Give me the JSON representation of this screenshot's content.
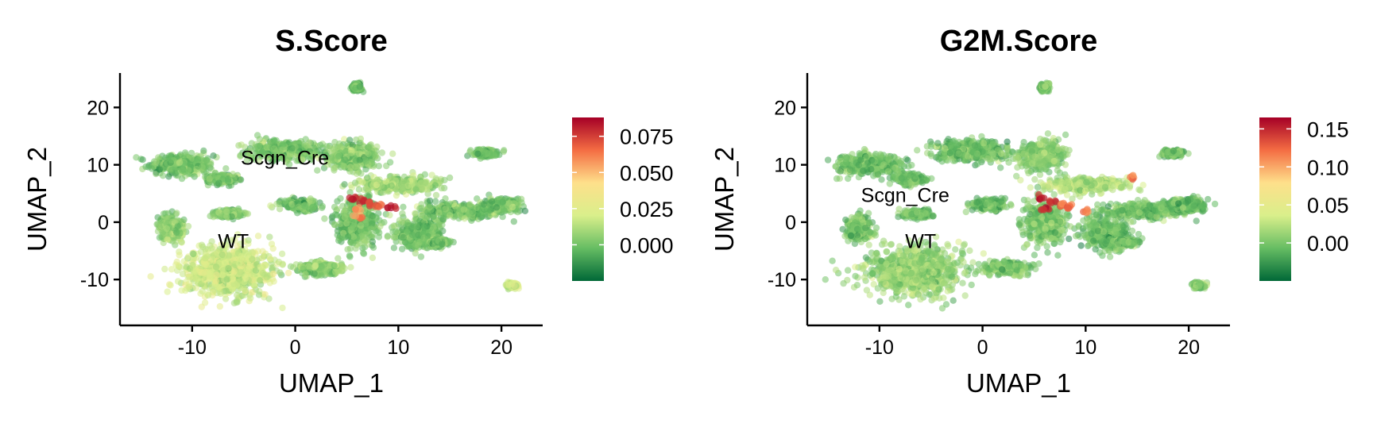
{
  "chart_data": [
    {
      "type": "scatter",
      "title": "S.Score",
      "xlabel": "UMAP_1",
      "ylabel": "UMAP_2",
      "xlim": [
        -17,
        24
      ],
      "ylim": [
        -18,
        26
      ],
      "xticks": [
        -10,
        0,
        10,
        20
      ],
      "yticks": [
        -10,
        0,
        10,
        20
      ],
      "grid": false,
      "legend": "right",
      "colorbar": {
        "min": -0.025,
        "max": 0.088,
        "ticks": [
          0.0,
          0.025,
          0.05,
          0.075
        ],
        "tick_labels": [
          "0.000",
          "0.025",
          "0.050",
          "0.075"
        ],
        "colors": [
          "#006837",
          "#66bd63",
          "#d9ef8b",
          "#fee08b",
          "#f46d43",
          "#a50026"
        ]
      },
      "annotations": [
        {
          "text": "Scgn_Cre",
          "x": -1,
          "y": 10
        },
        {
          "text": "WT",
          "x": -6,
          "y": -4.5
        }
      ],
      "clusters": [
        {
          "x": -11,
          "y": 10,
          "sx": 2.8,
          "sy": 1.6,
          "value": 0.0
        },
        {
          "x": -1,
          "y": 12.5,
          "sx": 3.2,
          "sy": 1.6,
          "value": 0.002
        },
        {
          "x": -7,
          "y": 7.5,
          "sx": 1.3,
          "sy": 0.8,
          "value": 0.0
        },
        {
          "x": -6.5,
          "y": 1.5,
          "sx": 1.2,
          "sy": 0.6,
          "value": 0.005
        },
        {
          "x": -12,
          "y": -1,
          "sx": 1.2,
          "sy": 1.8,
          "value": 0.005
        },
        {
          "x": -6.5,
          "y": -8.5,
          "sx": 4.0,
          "sy": 3.8,
          "value": 0.018
        },
        {
          "x": 0.5,
          "y": 3,
          "sx": 1.5,
          "sy": 0.8,
          "value": 0.0
        },
        {
          "x": 2.5,
          "y": -8,
          "sx": 2.0,
          "sy": 1.0,
          "value": 0.005
        },
        {
          "x": 5.5,
          "y": 11.5,
          "sx": 2.2,
          "sy": 2.2,
          "value": 0.005
        },
        {
          "x": 10,
          "y": 6.5,
          "sx": 3.5,
          "sy": 1.2,
          "value": 0.01
        },
        {
          "x": 6,
          "y": 0,
          "sx": 1.8,
          "sy": 3.5,
          "value": 0.0
        },
        {
          "x": 12,
          "y": -2,
          "sx": 2.0,
          "sy": 2.5,
          "value": 0.0
        },
        {
          "x": 16,
          "y": 2,
          "sx": 3.5,
          "sy": 1.2,
          "value": 0.0
        },
        {
          "x": 20,
          "y": 3,
          "sx": 1.8,
          "sy": 1.0,
          "value": 0.0
        },
        {
          "x": 18.5,
          "y": 12,
          "sx": 1.0,
          "sy": 0.5,
          "value": 0.0
        },
        {
          "x": 6,
          "y": 23.5,
          "sx": 0.4,
          "sy": 0.6,
          "value": 0.0
        },
        {
          "x": 21,
          "y": -11,
          "sx": 0.5,
          "sy": 0.4,
          "value": 0.02
        },
        {
          "x": 14,
          "y": -3.5,
          "sx": 0.8,
          "sy": 0.5,
          "value": 0.0
        }
      ],
      "hotspots": [
        {
          "x": 5.5,
          "y": 4.3,
          "value": 0.08
        },
        {
          "x": 6.5,
          "y": 3.8,
          "value": 0.078
        },
        {
          "x": 7.2,
          "y": 3.2,
          "value": 0.072
        },
        {
          "x": 8.0,
          "y": 3.0,
          "value": 0.07
        },
        {
          "x": 9.2,
          "y": 2.6,
          "value": 0.08
        },
        {
          "x": 6.0,
          "y": 2.2,
          "value": 0.06
        },
        {
          "x": 6.2,
          "y": 1.0,
          "value": 0.06
        }
      ]
    },
    {
      "type": "scatter",
      "title": "G2M.Score",
      "xlabel": "UMAP_1",
      "ylabel": "UMAP_2",
      "xlim": [
        -17,
        24
      ],
      "ylim": [
        -18,
        26
      ],
      "xticks": [
        -10,
        0,
        10,
        20
      ],
      "yticks": [
        -10,
        0,
        10,
        20
      ],
      "grid": false,
      "legend": "right",
      "colorbar": {
        "min": -0.05,
        "max": 0.165,
        "ticks": [
          0.0,
          0.05,
          0.1,
          0.15
        ],
        "tick_labels": [
          "0.00",
          "0.05",
          "0.10",
          "0.15"
        ],
        "colors": [
          "#006837",
          "#66bd63",
          "#d9ef8b",
          "#fee08b",
          "#f46d43",
          "#a50026"
        ]
      },
      "annotations": [
        {
          "text": "Scgn_Cre",
          "x": -7.5,
          "y": 3.5
        },
        {
          "text": "WT",
          "x": -6,
          "y": -4.5
        }
      ],
      "clusters": [
        {
          "x": -11,
          "y": 10,
          "sx": 2.8,
          "sy": 1.6,
          "value": -0.005
        },
        {
          "x": -1,
          "y": 12.5,
          "sx": 3.2,
          "sy": 1.6,
          "value": -0.005
        },
        {
          "x": -7,
          "y": 7.5,
          "sx": 1.3,
          "sy": 0.8,
          "value": -0.005
        },
        {
          "x": -6.5,
          "y": 1.5,
          "sx": 1.2,
          "sy": 0.6,
          "value": 0.0
        },
        {
          "x": -12,
          "y": -1,
          "sx": 1.2,
          "sy": 1.8,
          "value": 0.0
        },
        {
          "x": -6.5,
          "y": -8.5,
          "sx": 4.0,
          "sy": 3.8,
          "value": 0.01
        },
        {
          "x": 0.5,
          "y": 3,
          "sx": 1.5,
          "sy": 0.8,
          "value": -0.005
        },
        {
          "x": 2.5,
          "y": -8,
          "sx": 2.0,
          "sy": 1.0,
          "value": 0.0
        },
        {
          "x": 5.5,
          "y": 11.5,
          "sx": 2.2,
          "sy": 2.2,
          "value": 0.005
        },
        {
          "x": 10,
          "y": 6.5,
          "sx": 3.5,
          "sy": 1.2,
          "value": 0.02
        },
        {
          "x": 6,
          "y": 0,
          "sx": 1.8,
          "sy": 3.5,
          "value": 0.0
        },
        {
          "x": 12,
          "y": -2,
          "sx": 2.0,
          "sy": 2.5,
          "value": -0.005
        },
        {
          "x": 16,
          "y": 2,
          "sx": 3.5,
          "sy": 1.2,
          "value": -0.005
        },
        {
          "x": 20,
          "y": 3,
          "sx": 1.8,
          "sy": 1.0,
          "value": -0.005
        },
        {
          "x": 18.5,
          "y": 12,
          "sx": 1.0,
          "sy": 0.5,
          "value": -0.005
        },
        {
          "x": 6,
          "y": 23.5,
          "sx": 0.4,
          "sy": 0.6,
          "value": 0.0
        },
        {
          "x": 21,
          "y": -11,
          "sx": 0.5,
          "sy": 0.4,
          "value": 0.0
        },
        {
          "x": 14,
          "y": -3.5,
          "sx": 0.8,
          "sy": 0.5,
          "value": -0.005
        }
      ],
      "hotspots": [
        {
          "x": 5.5,
          "y": 4.3,
          "value": 0.15
        },
        {
          "x": 6.5,
          "y": 3.5,
          "value": 0.14
        },
        {
          "x": 7.5,
          "y": 3.0,
          "value": 0.13
        },
        {
          "x": 8.5,
          "y": 2.6,
          "value": 0.12
        },
        {
          "x": 10.0,
          "y": 1.8,
          "value": 0.11
        },
        {
          "x": 6.0,
          "y": 2.4,
          "value": 0.15
        },
        {
          "x": 14.5,
          "y": 8.0,
          "value": 0.11
        }
      ]
    }
  ]
}
